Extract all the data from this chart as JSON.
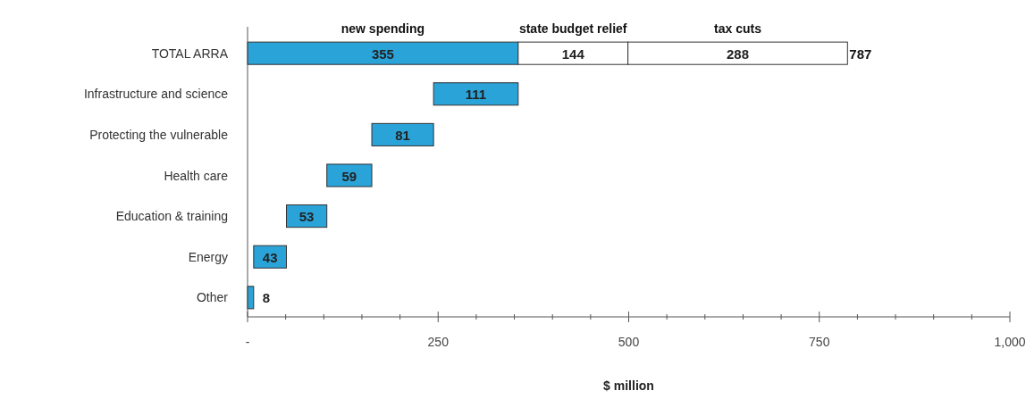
{
  "chart_data": {
    "type": "bar",
    "orientation": "horizontal",
    "stacked": true,
    "xlabel": "$ million",
    "categories": [
      "TOTAL ARRA",
      "Infrastructure and science",
      "Protecting the vulnerable",
      "Health care",
      "Education & training",
      "Energy",
      "Other"
    ],
    "series": [
      {
        "name": "new spending",
        "color": "#2aa3d9",
        "values": [
          355,
          111,
          81,
          59,
          53,
          43,
          8
        ],
        "base": [
          0,
          244,
          163,
          104,
          51,
          8,
          0
        ]
      },
      {
        "name": "state budget relief",
        "color": "#ffffff",
        "values": [
          144,
          null,
          null,
          null,
          null,
          null,
          null
        ]
      },
      {
        "name": "tax cuts",
        "color": "#ffffff",
        "values": [
          288,
          null,
          null,
          null,
          null,
          null,
          null
        ]
      }
    ],
    "totals": [
      "787",
      null,
      null,
      null,
      null,
      null,
      null
    ],
    "data_labels": true,
    "grid": false,
    "xlim": [
      0,
      1000
    ],
    "xticks": [
      {
        "value": 0,
        "label": "-"
      },
      {
        "value": 50,
        "label": null
      },
      {
        "value": 100,
        "label": null
      },
      {
        "value": 150,
        "label": null
      },
      {
        "value": 200,
        "label": null
      },
      250,
      {
        "value": 300,
        "label": null
      },
      {
        "value": 350,
        "label": null
      },
      {
        "value": 400,
        "label": null
      },
      {
        "value": 450,
        "label": null
      },
      500,
      {
        "value": 550,
        "label": null
      },
      {
        "value": 600,
        "label": null
      },
      {
        "value": 650,
        "label": null
      },
      {
        "value": 700,
        "label": null
      },
      750,
      {
        "value": 800,
        "label": null
      },
      {
        "value": 850,
        "label": null
      },
      {
        "value": 900,
        "label": null
      },
      {
        "value": 950,
        "label": null
      },
      {
        "value": 1000,
        "label": "1,000"
      }
    ]
  }
}
